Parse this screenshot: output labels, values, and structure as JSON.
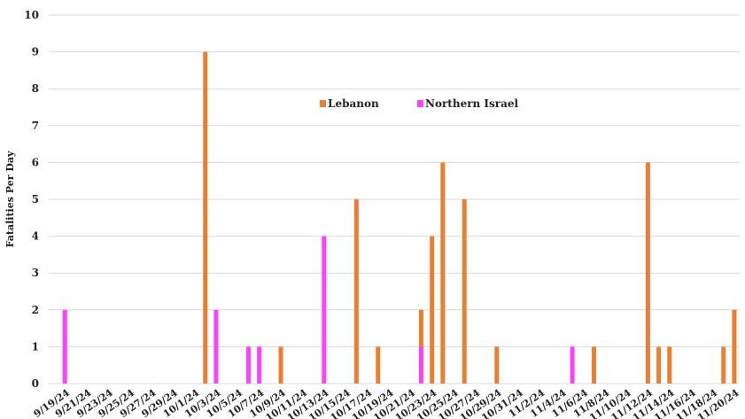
{
  "chart_data": {
    "type": "bar",
    "ylabel": "Fatalities Per Day",
    "ylim": [
      0,
      10
    ],
    "yticks": [
      0,
      1,
      2,
      3,
      4,
      5,
      6,
      7,
      8,
      9,
      10
    ],
    "grid": true,
    "legend_position": "top-center",
    "x_tick_labels": [
      "9/19/24",
      "9/21/24",
      "9/23/24",
      "9/25/24",
      "9/27/24",
      "9/29/24",
      "10/1/24",
      "10/3/24",
      "10/5/24",
      "10/7/24",
      "10/9/24",
      "10/11/24",
      "10/13/24",
      "10/15/24",
      "10/17/24",
      "10/19/24",
      "10/21/24",
      "10/23/24",
      "10/25/24",
      "10/27/24",
      "10/29/24",
      "10/31/24",
      "11/2/24",
      "11/4/24",
      "11/6/24",
      "11/8/24",
      "11/10/24",
      "11/12/24",
      "11/14/24",
      "11/16/24",
      "11/18/24",
      "11/20/24"
    ],
    "series": [
      {
        "name": "Lebanon",
        "color": "#ED7D31",
        "points": [
          {
            "x": "10/2/24",
            "y": 9
          },
          {
            "x": "10/9/24",
            "y": 1
          },
          {
            "x": "10/16/24",
            "y": 5
          },
          {
            "x": "10/18/24",
            "y": 1
          },
          {
            "x": "10/22/24",
            "y": 2
          },
          {
            "x": "10/23/24",
            "y": 4
          },
          {
            "x": "10/24/24",
            "y": 6
          },
          {
            "x": "10/26/24",
            "y": 5
          },
          {
            "x": "10/29/24",
            "y": 1
          },
          {
            "x": "11/7/24",
            "y": 1
          },
          {
            "x": "11/12/24",
            "y": 6
          },
          {
            "x": "11/13/24",
            "y": 1
          },
          {
            "x": "11/14/24",
            "y": 1
          },
          {
            "x": "11/19/24",
            "y": 1
          },
          {
            "x": "11/20/24",
            "y": 2
          }
        ]
      },
      {
        "name": "Northern Israel",
        "color": "#FF40FF",
        "points": [
          {
            "x": "9/19/24",
            "y": 2
          },
          {
            "x": "10/3/24",
            "y": 2
          },
          {
            "x": "10/6/24",
            "y": 1
          },
          {
            "x": "10/7/24",
            "y": 1
          },
          {
            "x": "10/13/24",
            "y": 4
          },
          {
            "x": "10/22/24",
            "y": 1
          },
          {
            "x": "11/5/24",
            "y": 1
          }
        ]
      }
    ]
  }
}
